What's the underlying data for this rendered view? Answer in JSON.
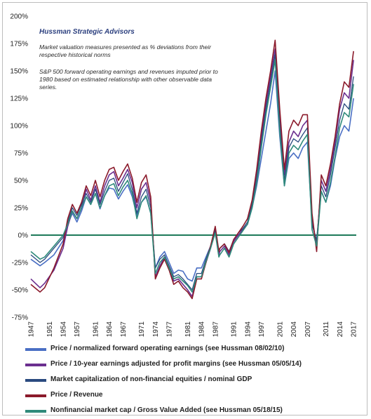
{
  "chart_data": {
    "type": "line",
    "title": "Hussman Strategic Advisors",
    "notes": [
      "Market valuation measures presented as % deviations from their respective historical norms",
      "S&P 500 forward operating earnings and revenues imputed prior to 1980 based on estimated relationship with other observable data series."
    ],
    "ylim": [
      -75,
      200
    ],
    "yticks": [
      -75,
      -50,
      -25,
      0,
      25,
      50,
      75,
      100,
      125,
      150,
      175,
      200
    ],
    "ytick_labels": [
      "-75%",
      "-50%",
      "-25%",
      "0%",
      "25%",
      "50%",
      "75%",
      "100%",
      "125%",
      "150%",
      "175%",
      "200%"
    ],
    "xlim": [
      1947,
      2017.6
    ],
    "xticks": [
      1947,
      1951,
      1954,
      1957,
      1961,
      1964,
      1967,
      1971,
      1974,
      1977,
      1981,
      1984,
      1987,
      1991,
      1994,
      1997,
      2001,
      2004,
      2007,
      2011,
      2014,
      2017
    ],
    "grid": false,
    "legend_position": "bottom",
    "zero_line_color": "#1e7a5a",
    "series": [
      {
        "name": "Price / normalized forward operating earnings (see Hussman 08/02/10)",
        "color": "#4a6fc4",
        "width": 1.6,
        "x": [
          1947,
          1949,
          1950,
          1952,
          1954,
          1955,
          1956,
          1957,
          1958,
          1959,
          1960,
          1961,
          1962,
          1963,
          1964,
          1965,
          1966,
          1967,
          1968,
          1969,
          1970,
          1971,
          1972,
          1973,
          1974,
          1975,
          1976,
          1977,
          1978,
          1979,
          1980,
          1981,
          1982,
          1983,
          1984,
          1985,
          1986,
          1987,
          1987.8,
          1988,
          1989,
          1990,
          1991,
          1992,
          1993,
          1994,
          1995,
          1996,
          1997,
          1998,
          1999,
          2000,
          2001,
          2002,
          2003,
          2004,
          2005,
          2006,
          2007,
          2008,
          2009,
          2010,
          2011,
          2012,
          2013,
          2014,
          2015,
          2016,
          2017
        ],
        "y": [
          -22,
          -28,
          -25,
          -18,
          -5,
          10,
          20,
          12,
          22,
          35,
          28,
          38,
          24,
          36,
          43,
          42,
          33,
          40,
          46,
          35,
          18,
          30,
          35,
          20,
          -30,
          -20,
          -15,
          -25,
          -35,
          -32,
          -33,
          -40,
          -42,
          -30,
          -30,
          -20,
          -10,
          2,
          -15,
          -12,
          -8,
          -15,
          -5,
          0,
          5,
          10,
          25,
          45,
          70,
          95,
          120,
          150,
          90,
          45,
          70,
          75,
          70,
          80,
          85,
          10,
          -5,
          40,
          30,
          45,
          70,
          90,
          100,
          95,
          125
        ]
      },
      {
        "name": "Price / 10-year earnings adjusted for profit margins (see Hussman 05/05/14)",
        "color": "#6b2f8f",
        "width": 1.6,
        "x": [
          1947,
          1949,
          1950,
          1952,
          1954,
          1955,
          1956,
          1957,
          1958,
          1959,
          1960,
          1961,
          1962,
          1963,
          1964,
          1965,
          1966,
          1967,
          1968,
          1969,
          1970,
          1971,
          1972,
          1973,
          1974,
          1975,
          1976,
          1977,
          1978,
          1979,
          1980,
          1981,
          1982,
          1983,
          1984,
          1985,
          1986,
          1987,
          1987.8,
          1988,
          1989,
          1990,
          1991,
          1992,
          1993,
          1994,
          1995,
          1996,
          1997,
          1998,
          1999,
          2000,
          2001,
          2002,
          2003,
          2004,
          2005,
          2006,
          2007,
          2008,
          2009,
          2010,
          2011,
          2012,
          2013,
          2014,
          2015,
          2016,
          2017
        ],
        "y": [
          -40,
          -48,
          -44,
          -32,
          -12,
          8,
          22,
          15,
          25,
          42,
          32,
          45,
          30,
          45,
          55,
          58,
          45,
          52,
          60,
          48,
          25,
          42,
          48,
          30,
          -38,
          -28,
          -20,
          -30,
          -42,
          -40,
          -45,
          -50,
          -56,
          -38,
          -38,
          -25,
          -12,
          5,
          -18,
          -15,
          -10,
          -18,
          -6,
          0,
          5,
          10,
          28,
          55,
          90,
          120,
          145,
          170,
          110,
          55,
          85,
          95,
          90,
          100,
          105,
          15,
          -10,
          50,
          40,
          60,
          85,
          115,
          130,
          125,
          160
        ]
      },
      {
        "name": "Market capitalization of non-financial equities / nominal GDP",
        "color": "#2a4a7f",
        "width": 1.3,
        "x": [
          1947,
          1949,
          1950,
          1952,
          1954,
          1955,
          1956,
          1957,
          1958,
          1959,
          1960,
          1961,
          1962,
          1963,
          1964,
          1965,
          1966,
          1967,
          1968,
          1969,
          1970,
          1971,
          1972,
          1973,
          1974,
          1975,
          1976,
          1977,
          1978,
          1979,
          1980,
          1981,
          1982,
          1983,
          1984,
          1985,
          1986,
          1987,
          1987.8,
          1988,
          1989,
          1990,
          1991,
          1992,
          1993,
          1994,
          1995,
          1996,
          1997,
          1998,
          1999,
          2000,
          2001,
          2002,
          2003,
          2004,
          2005,
          2006,
          2007,
          2008,
          2009,
          2010,
          2011,
          2012,
          2013,
          2014,
          2015,
          2016,
          2017
        ],
        "y": [
          -18,
          -25,
          -22,
          -12,
          -2,
          12,
          25,
          18,
          28,
          38,
          30,
          42,
          28,
          40,
          50,
          52,
          40,
          48,
          56,
          42,
          20,
          35,
          42,
          25,
          -30,
          -22,
          -18,
          -28,
          -38,
          -36,
          -40,
          -45,
          -50,
          -35,
          -35,
          -22,
          -10,
          5,
          -15,
          -12,
          -8,
          -15,
          -4,
          2,
          6,
          12,
          28,
          52,
          85,
          115,
          140,
          165,
          100,
          50,
          80,
          88,
          85,
          92,
          98,
          10,
          -5,
          45,
          35,
          55,
          80,
          105,
          120,
          115,
          145
        ]
      },
      {
        "name": "Price / Revenue",
        "color": "#8b1a2b",
        "width": 1.6,
        "x": [
          1947,
          1949,
          1950,
          1952,
          1954,
          1955,
          1956,
          1957,
          1958,
          1959,
          1960,
          1961,
          1962,
          1963,
          1964,
          1965,
          1966,
          1967,
          1968,
          1969,
          1970,
          1971,
          1972,
          1973,
          1974,
          1975,
          1976,
          1977,
          1978,
          1979,
          1980,
          1981,
          1982,
          1983,
          1984,
          1985,
          1986,
          1987,
          1987.8,
          1988,
          1989,
          1990,
          1991,
          1992,
          1993,
          1994,
          1995,
          1996,
          1997,
          1998,
          1999,
          2000,
          2001,
          2002,
          2003,
          2004,
          2005,
          2006,
          2007,
          2008,
          2009,
          2010,
          2011,
          2012,
          2013,
          2014,
          2015,
          2016,
          2017
        ],
        "y": [
          -45,
          -52,
          -48,
          -30,
          -8,
          15,
          28,
          20,
          30,
          45,
          36,
          50,
          35,
          50,
          60,
          62,
          50,
          58,
          65,
          52,
          30,
          48,
          55,
          35,
          -40,
          -30,
          -22,
          -32,
          -45,
          -42,
          -48,
          -52,
          -58,
          -40,
          -40,
          -25,
          -10,
          8,
          -15,
          -12,
          -8,
          -16,
          -4,
          2,
          8,
          15,
          32,
          60,
          95,
          125,
          150,
          178,
          115,
          60,
          95,
          105,
          100,
          110,
          110,
          20,
          -15,
          55,
          45,
          65,
          90,
          120,
          140,
          135,
          168
        ]
      },
      {
        "name": "Nonfinancial market cap / Gross Value Added (see Hussman 05/18/15)",
        "color": "#2f8a7a",
        "width": 1.6,
        "x": [
          1947,
          1949,
          1950,
          1952,
          1954,
          1955,
          1956,
          1957,
          1958,
          1959,
          1960,
          1961,
          1962,
          1963,
          1964,
          1965,
          1966,
          1967,
          1968,
          1969,
          1970,
          1971,
          1972,
          1973,
          1974,
          1975,
          1976,
          1977,
          1978,
          1979,
          1980,
          1981,
          1982,
          1983,
          1984,
          1985,
          1986,
          1987,
          1987.8,
          1988,
          1989,
          1990,
          1991,
          1992,
          1993,
          1994,
          1995,
          1996,
          1997,
          1998,
          1999,
          2000,
          2001,
          2002,
          2003,
          2004,
          2005,
          2006,
          2007,
          2008,
          2009,
          2010,
          2011,
          2012,
          2013,
          2014,
          2015,
          2016,
          2017
        ],
        "y": [
          -15,
          -22,
          -20,
          -10,
          0,
          10,
          22,
          15,
          25,
          35,
          28,
          38,
          25,
          36,
          45,
          47,
          36,
          44,
          50,
          38,
          15,
          30,
          36,
          20,
          -35,
          -25,
          -20,
          -30,
          -40,
          -38,
          -42,
          -46,
          -52,
          -38,
          -38,
          -24,
          -12,
          2,
          -20,
          -18,
          -12,
          -20,
          -8,
          -2,
          4,
          10,
          25,
          48,
          80,
          110,
          135,
          160,
          95,
          45,
          75,
          82,
          78,
          86,
          92,
          5,
          -10,
          40,
          30,
          48,
          72,
          98,
          112,
          108,
          138
        ]
      }
    ]
  }
}
